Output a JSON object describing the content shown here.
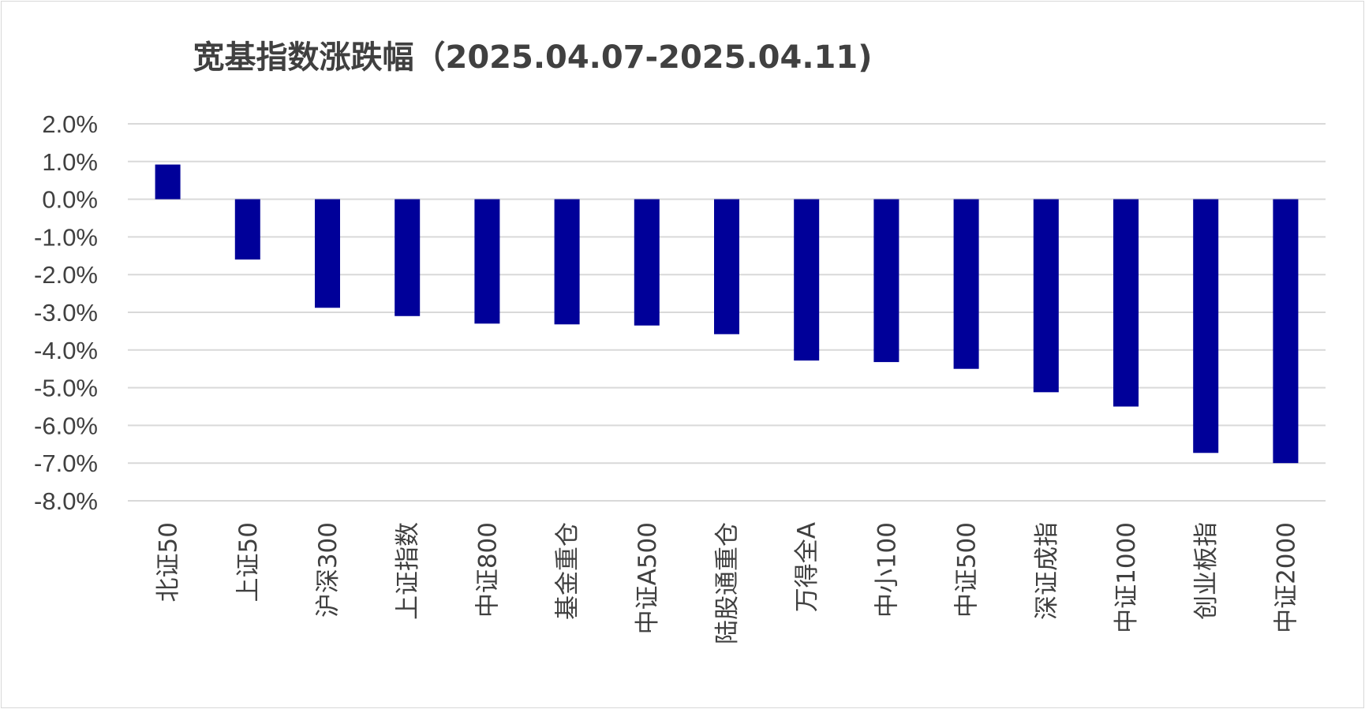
{
  "chart_data": {
    "type": "bar",
    "title": "宽基指数涨跌幅（2025.04.07-2025.04.11)",
    "xlabel": "",
    "ylabel": "",
    "ylim": [
      -8.0,
      2.0
    ],
    "yticks": [
      "2.0%",
      "1.0%",
      "0.0%",
      "-1.0%",
      "-2.0%",
      "-3.0%",
      "-4.0%",
      "-5.0%",
      "-6.0%",
      "-7.0%",
      "-8.0%"
    ],
    "ytick_values": [
      2,
      1,
      0,
      -1,
      -2,
      -3,
      -4,
      -5,
      -6,
      -7,
      -8
    ],
    "grid": true,
    "legend": "none",
    "bar_color": "#000099",
    "categories": [
      "北证50",
      "上证50",
      "沪深300",
      "上证指数",
      "中证800",
      "基金重仓",
      "中证A500",
      "陆股通重仓",
      "万得全A",
      "中小100",
      "中证500",
      "深证成指",
      "中证1000",
      "创业板指",
      "中证2000"
    ],
    "values": [
      0.92,
      -1.6,
      -2.88,
      -3.1,
      -3.3,
      -3.32,
      -3.35,
      -3.58,
      -4.28,
      -4.32,
      -4.5,
      -5.12,
      -5.5,
      -6.73,
      -7.0
    ]
  }
}
